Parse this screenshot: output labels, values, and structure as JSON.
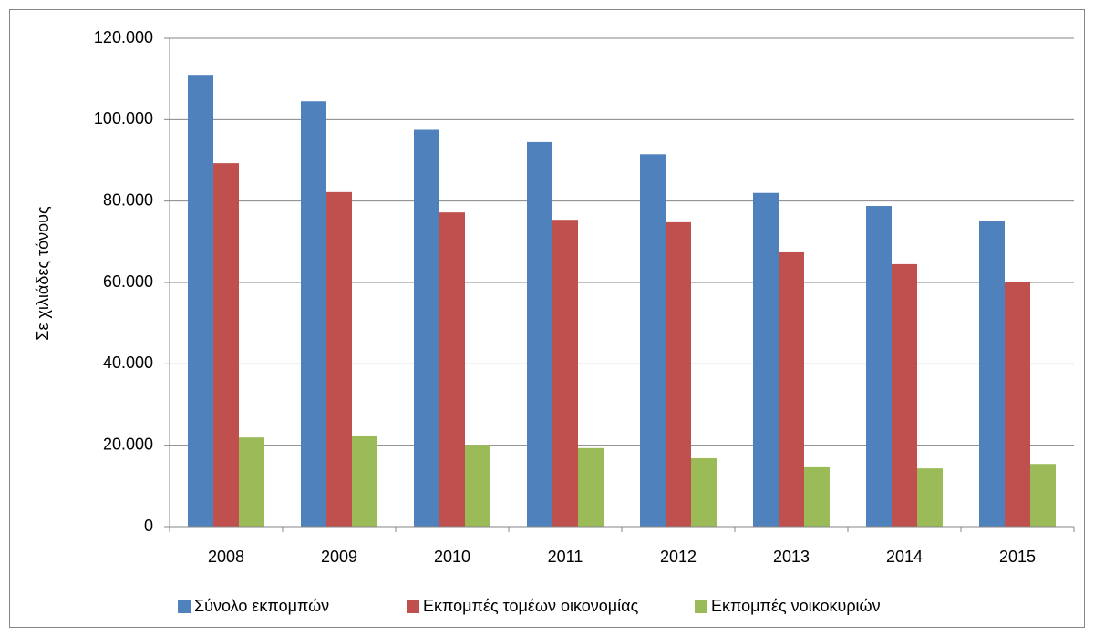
{
  "chart_data": {
    "type": "bar",
    "y_label": "Σε χιλιάδες τόνους",
    "categories": [
      "2008",
      "2009",
      "2010",
      "2011",
      "2012",
      "2013",
      "2014",
      "2015"
    ],
    "series": [
      {
        "name": "Σύνολο εκπομπών",
        "color": "#4f81bd",
        "values": [
          111000,
          104500,
          97500,
          94500,
          91500,
          82000,
          78800,
          75000
        ]
      },
      {
        "name": "Εκπομπές τομέων οικονομίας",
        "color": "#c0504d",
        "values": [
          89300,
          82200,
          77200,
          75400,
          74800,
          67400,
          64500,
          60000
        ]
      },
      {
        "name": "Εκπομπές νοικοκυριών",
        "color": "#9bbb59",
        "values": [
          21900,
          22400,
          20100,
          19300,
          16800,
          14800,
          14300,
          15400
        ]
      }
    ],
    "ylim": [
      0,
      120000
    ],
    "yticks": [
      0,
      {
        "value": 20000,
        "label": "20.000"
      },
      {
        "value": 40000,
        "label": "40.000"
      },
      {
        "value": 60000,
        "label": "60.000"
      },
      {
        "value": 80000,
        "label": "80.000"
      },
      {
        "value": 100000,
        "label": "100.000"
      },
      {
        "value": 120000,
        "label": "120.000"
      }
    ],
    "grid": true,
    "legend": "bottom"
  }
}
